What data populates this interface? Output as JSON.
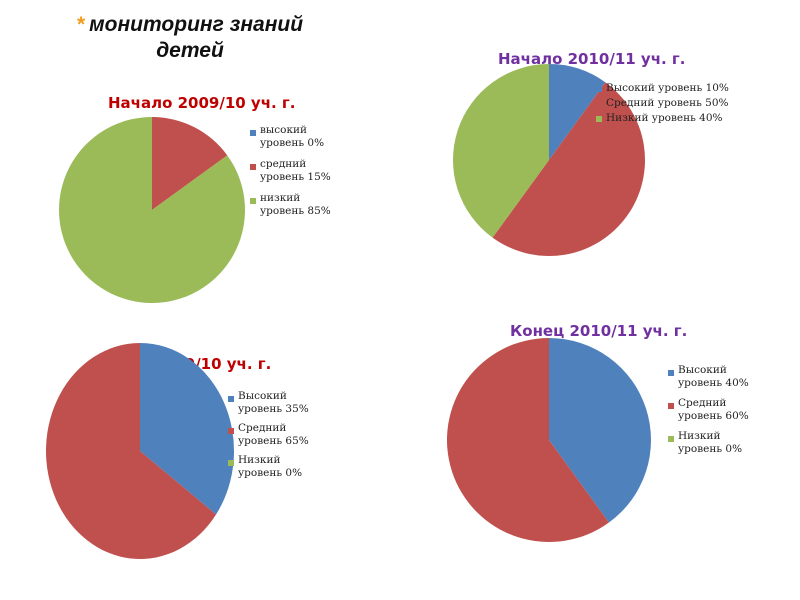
{
  "slide": {
    "star": "*",
    "title_line1": "мониторинг знаний",
    "title_line2": "детей"
  },
  "colors": {
    "blue": "#4f81bd",
    "red": "#c0504d",
    "green": "#9bbb59"
  },
  "chart_data": [
    {
      "id": "start-2009",
      "type": "pie",
      "title": "Начало 2009/10 уч. г.",
      "title_color": "#c00000",
      "slices": [
        {
          "label_line1": "высокий",
          "label_line2": "уровень 0%",
          "value": 0,
          "color": "#4f81bd"
        },
        {
          "label_line1": "средний",
          "label_line2": "уровень 15%",
          "value": 15,
          "color": "#c0504d"
        },
        {
          "label_line1": "низкий",
          "label_line2": "уровень 85%",
          "value": 85,
          "color": "#9bbb59"
        }
      ]
    },
    {
      "id": "start-2010",
      "type": "pie",
      "title": "Начало 2010/11 уч. г.",
      "title_color": "#7030a0",
      "slices": [
        {
          "label_line1": "Высокий уровень 10%",
          "label_line2": "",
          "value": 10,
          "color": "#4f81bd"
        },
        {
          "label_line1": "Средний уровень 50%",
          "label_line2": "",
          "value": 50,
          "color": "#c0504d"
        },
        {
          "label_line1": "Низкий уровень 40%",
          "label_line2": "",
          "value": 40,
          "color": "#9bbb59"
        }
      ]
    },
    {
      "id": "end-2009",
      "type": "pie",
      "title": "Конец  2009/10 уч. г.",
      "title_color": "#c00000",
      "slices": [
        {
          "label_line1": "Высокий",
          "label_line2": "уровень 35%",
          "value": 35,
          "color": "#4f81bd"
        },
        {
          "label_line1": "Средний",
          "label_line2": "уровень 65%",
          "value": 65,
          "color": "#c0504d"
        },
        {
          "label_line1": "Низкий",
          "label_line2": "уровень 0%",
          "value": 0,
          "color": "#9bbb59"
        }
      ]
    },
    {
      "id": "end-2010",
      "type": "pie",
      "title": "Конец 2010/11 уч. г.",
      "title_color": "#7030a0",
      "slices": [
        {
          "label_line1": "Высокий",
          "label_line2": "уровень 40%",
          "value": 40,
          "color": "#4f81bd"
        },
        {
          "label_line1": "Средний",
          "label_line2": "уровень 60%",
          "value": 60,
          "color": "#c0504d"
        },
        {
          "label_line1": "Низкий",
          "label_line2": "уровень 0%",
          "value": 0,
          "color": "#9bbb59"
        }
      ]
    }
  ]
}
